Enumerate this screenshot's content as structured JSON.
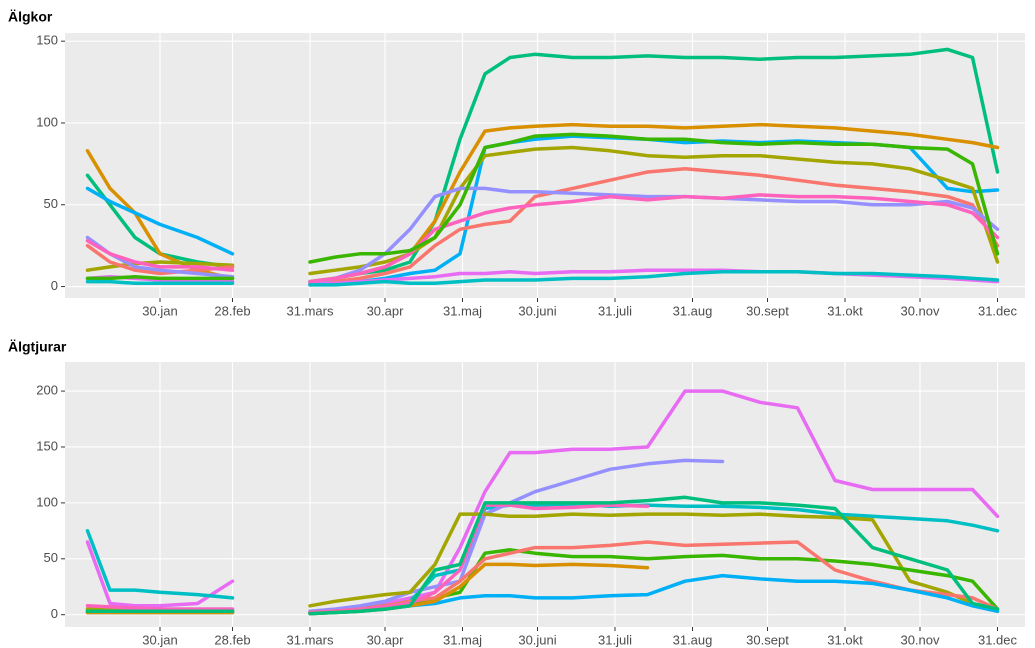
{
  "chart_data": [
    {
      "type": "line",
      "title": "Älgkor",
      "x": [
        1,
        10,
        20,
        30,
        45,
        59,
        75,
        90,
        100,
        110,
        120,
        130,
        140,
        150,
        160,
        170,
        180,
        195,
        210,
        225,
        240,
        255,
        270,
        285,
        300,
        315,
        330,
        345,
        355,
        365
      ],
      "xlim": [
        -8,
        376
      ],
      "ylim": [
        -7,
        155
      ],
      "xticks": [
        {
          "value": 30,
          "label": "30.jan"
        },
        {
          "value": 59,
          "label": "28.feb"
        },
        {
          "value": 90,
          "label": "31.mars"
        },
        {
          "value": 120,
          "label": "30.apr"
        },
        {
          "value": 151,
          "label": "31.maj"
        },
        {
          "value": 181,
          "label": "30.juni"
        },
        {
          "value": 212,
          "label": "31.juli"
        },
        {
          "value": 243,
          "label": "31.aug"
        },
        {
          "value": 273,
          "label": "30.sept"
        },
        {
          "value": 304,
          "label": "31.okt"
        },
        {
          "value": 334,
          "label": "30.nov"
        },
        {
          "value": 365,
          "label": "31.dec"
        }
      ],
      "yticks": [
        0,
        50,
        100,
        150
      ],
      "grid": true,
      "series": [
        {
          "color": "#00BF7D",
          "values": [
            68,
            50,
            30,
            20,
            15,
            12,
            null,
            3,
            5,
            8,
            10,
            15,
            40,
            90,
            130,
            140,
            142,
            140,
            140,
            141,
            140,
            140,
            139,
            140,
            140,
            141,
            142,
            145,
            140,
            70
          ]
        },
        {
          "color": "#D89000",
          "values": [
            83,
            60,
            45,
            20,
            10,
            5,
            null,
            3,
            5,
            8,
            12,
            20,
            40,
            70,
            95,
            97,
            98,
            99,
            98,
            98,
            97,
            98,
            99,
            98,
            97,
            95,
            93,
            90,
            88,
            85
          ]
        },
        {
          "color": "#00B0F6",
          "values": [
            60,
            52,
            45,
            38,
            30,
            20,
            null,
            1,
            2,
            3,
            5,
            8,
            10,
            20,
            85,
            88,
            90,
            92,
            91,
            90,
            88,
            89,
            88,
            89,
            88,
            87,
            85,
            60,
            58,
            59
          ]
        },
        {
          "color": "#A3A500",
          "values": [
            10,
            12,
            14,
            15,
            14,
            13,
            null,
            8,
            10,
            12,
            15,
            20,
            30,
            60,
            80,
            82,
            84,
            85,
            83,
            80,
            79,
            80,
            80,
            78,
            76,
            75,
            72,
            65,
            60,
            15
          ]
        },
        {
          "color": "#F8766D",
          "values": [
            25,
            15,
            10,
            8,
            10,
            12,
            null,
            2,
            3,
            5,
            8,
            12,
            25,
            35,
            38,
            40,
            55,
            60,
            65,
            70,
            72,
            70,
            68,
            65,
            62,
            60,
            58,
            55,
            50,
            25
          ]
        },
        {
          "color": "#9590FF",
          "values": [
            30,
            20,
            12,
            10,
            8,
            6,
            null,
            2,
            5,
            10,
            20,
            35,
            55,
            60,
            60,
            58,
            58,
            57,
            56,
            55,
            55,
            54,
            53,
            52,
            52,
            50,
            50,
            52,
            48,
            35
          ]
        },
        {
          "color": "#E76BF3",
          "values": [
            5,
            6,
            5,
            4,
            4,
            3,
            null,
            1,
            2,
            3,
            4,
            5,
            6,
            8,
            8,
            9,
            8,
            9,
            9,
            10,
            10,
            10,
            9,
            9,
            8,
            7,
            6,
            5,
            4,
            3
          ]
        },
        {
          "color": "#FF62BC",
          "values": [
            28,
            20,
            15,
            12,
            12,
            10,
            null,
            3,
            5,
            8,
            12,
            20,
            35,
            40,
            45,
            48,
            50,
            52,
            55,
            53,
            55,
            54,
            56,
            55,
            55,
            54,
            52,
            50,
            45,
            30
          ]
        },
        {
          "color": "#39B600",
          "values": [
            5,
            5,
            6,
            5,
            5,
            5,
            null,
            15,
            18,
            20,
            20,
            22,
            30,
            50,
            85,
            88,
            92,
            93,
            92,
            90,
            90,
            88,
            87,
            88,
            87,
            87,
            85,
            84,
            75,
            20
          ]
        },
        {
          "color": "#00BFC4",
          "values": [
            3,
            3,
            2,
            2,
            2,
            2,
            null,
            1,
            1,
            2,
            3,
            2,
            2,
            3,
            4,
            4,
            4,
            5,
            5,
            6,
            8,
            9,
            9,
            9,
            8,
            8,
            7,
            6,
            5,
            4
          ]
        }
      ]
    },
    {
      "type": "line",
      "title": "Älgtjurar",
      "x": [
        1,
        10,
        20,
        30,
        45,
        59,
        75,
        90,
        100,
        110,
        120,
        130,
        140,
        150,
        160,
        170,
        180,
        195,
        210,
        225,
        240,
        255,
        270,
        285,
        300,
        315,
        330,
        345,
        355,
        365
      ],
      "xlim": [
        -8,
        376
      ],
      "ylim": [
        -11,
        226
      ],
      "xticks": [
        {
          "value": 30,
          "label": "30.jan"
        },
        {
          "value": 59,
          "label": "28.feb"
        },
        {
          "value": 90,
          "label": "31.mars"
        },
        {
          "value": 120,
          "label": "30.apr"
        },
        {
          "value": 151,
          "label": "31.maj"
        },
        {
          "value": 181,
          "label": "30.juni"
        },
        {
          "value": 212,
          "label": "31.juli"
        },
        {
          "value": 243,
          "label": "31.aug"
        },
        {
          "value": 273,
          "label": "30.sept"
        },
        {
          "value": 304,
          "label": "31.okt"
        },
        {
          "value": 334,
          "label": "30.nov"
        },
        {
          "value": 365,
          "label": "31.dec"
        }
      ],
      "yticks": [
        0,
        50,
        100,
        150,
        200
      ],
      "grid": true,
      "series": [
        {
          "color": "#E76BF3",
          "values": [
            65,
            10,
            8,
            8,
            10,
            30,
            null,
            2,
            3,
            5,
            10,
            15,
            20,
            60,
            110,
            145,
            145,
            148,
            148,
            150,
            200,
            200,
            190,
            185,
            120,
            112,
            112,
            112,
            112,
            88
          ]
        },
        {
          "color": "#00BFC4",
          "values": [
            75,
            22,
            22,
            20,
            18,
            15,
            null,
            2,
            3,
            5,
            8,
            12,
            35,
            40,
            95,
            98,
            98,
            99,
            97,
            98,
            97,
            97,
            96,
            94,
            90,
            88,
            86,
            84,
            80,
            75
          ]
        },
        {
          "color": "#9590FF",
          "values": [
            5,
            5,
            5,
            5,
            5,
            5,
            null,
            3,
            5,
            8,
            12,
            20,
            25,
            30,
            90,
            100,
            110,
            120,
            130,
            135,
            138,
            137,
            null,
            null,
            null,
            null,
            null,
            null,
            null,
            null
          ]
        },
        {
          "color": "#A3A500",
          "values": [
            5,
            5,
            4,
            4,
            4,
            3,
            null,
            8,
            12,
            15,
            18,
            20,
            45,
            90,
            90,
            88,
            88,
            90,
            89,
            90,
            90,
            89,
            90,
            88,
            87,
            85,
            30,
            20,
            10,
            3
          ]
        },
        {
          "color": "#39B600",
          "values": [
            3,
            3,
            3,
            3,
            3,
            3,
            null,
            2,
            3,
            5,
            8,
            10,
            15,
            20,
            55,
            58,
            55,
            52,
            52,
            50,
            52,
            53,
            50,
            50,
            48,
            45,
            40,
            35,
            30,
            5
          ]
        },
        {
          "color": "#F8766D",
          "values": [
            2,
            2,
            2,
            2,
            2,
            2,
            null,
            2,
            3,
            5,
            8,
            12,
            15,
            30,
            50,
            55,
            60,
            60,
            62,
            65,
            62,
            63,
            64,
            65,
            40,
            30,
            22,
            18,
            15,
            5
          ]
        },
        {
          "color": "#00B0F6",
          "values": [
            2,
            2,
            2,
            2,
            2,
            2,
            null,
            1,
            2,
            3,
            5,
            8,
            10,
            15,
            17,
            17,
            15,
            15,
            17,
            18,
            30,
            35,
            32,
            30,
            30,
            28,
            22,
            15,
            8,
            3
          ]
        },
        {
          "color": "#FF62BC",
          "values": [
            8,
            7,
            6,
            5,
            5,
            5,
            null,
            2,
            3,
            5,
            7,
            10,
            20,
            40,
            98,
            98,
            95,
            96,
            98,
            97,
            null,
            null,
            null,
            null,
            null,
            null,
            null,
            null,
            null,
            null
          ]
        },
        {
          "color": "#D89000",
          "values": [
            2,
            2,
            2,
            2,
            2,
            2,
            null,
            1,
            2,
            3,
            5,
            8,
            12,
            25,
            45,
            45,
            44,
            45,
            44,
            42,
            null,
            null,
            null,
            null,
            null,
            null,
            null,
            null,
            null,
            null
          ]
        },
        {
          "color": "#00BF7D",
          "values": [
            3,
            3,
            3,
            3,
            3,
            3,
            null,
            1,
            2,
            3,
            5,
            8,
            40,
            45,
            100,
            100,
            100,
            100,
            100,
            102,
            105,
            100,
            100,
            98,
            95,
            60,
            50,
            40,
            10,
            5
          ]
        }
      ]
    }
  ]
}
